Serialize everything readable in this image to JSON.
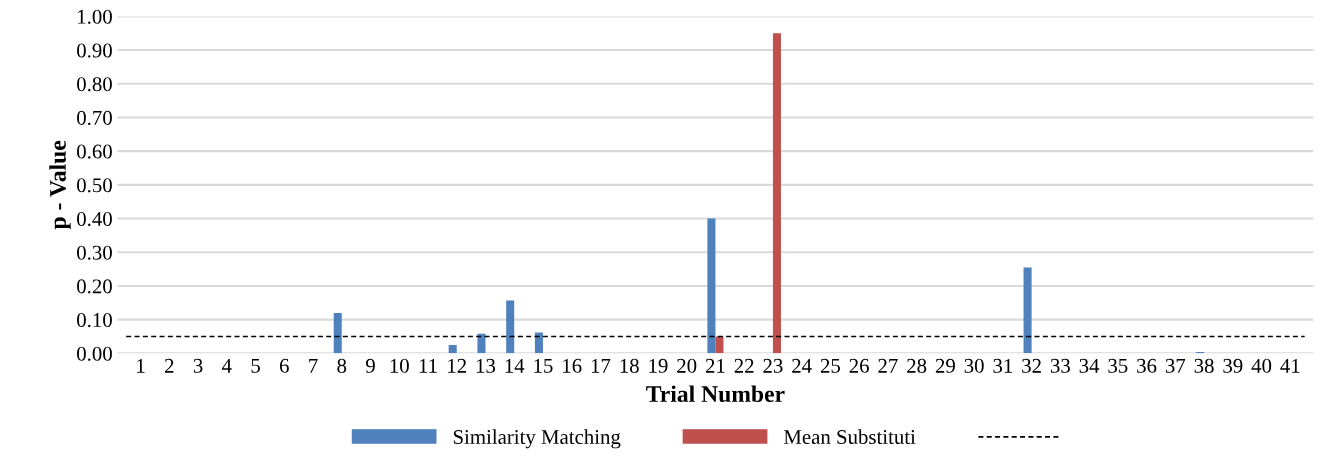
{
  "chart_data": {
    "type": "bar",
    "xlabel": "Trial Number",
    "ylabel": "p - Value",
    "categories": [
      "1",
      "2",
      "3",
      "4",
      "5",
      "6",
      "7",
      "8",
      "9",
      "10",
      "11",
      "12",
      "13",
      "14",
      "15",
      "16",
      "17",
      "18",
      "19",
      "20",
      "21",
      "22",
      "23",
      "24",
      "25",
      "26",
      "27",
      "28",
      "29",
      "30",
      "31",
      "32",
      "33",
      "34",
      "35",
      "36",
      "37",
      "38",
      "39",
      "40",
      "41"
    ],
    "series": [
      {
        "name": "Similarity Matching",
        "color": "#4f81bd",
        "values": [
          0,
          0,
          0,
          0,
          0,
          0,
          0,
          0.12,
          0,
          0,
          0,
          0.025,
          0.058,
          0.157,
          0.062,
          0,
          0,
          0,
          0,
          0,
          0.4,
          0,
          0,
          0,
          0,
          0,
          0,
          0,
          0,
          0,
          0,
          0.255,
          0,
          0,
          0,
          0,
          0,
          0.004,
          0,
          0,
          0
        ]
      },
      {
        "name": "Mean Substituti",
        "color": "#c0504d",
        "values": [
          0,
          0,
          0,
          0,
          0,
          0,
          0,
          0,
          0,
          0,
          0,
          0,
          0,
          0,
          0,
          0,
          0,
          0,
          0,
          0,
          0.05,
          0,
          0.95,
          0,
          0,
          0,
          0,
          0,
          0,
          0,
          0,
          0,
          0,
          0,
          0,
          0,
          0,
          0,
          0,
          0,
          0
        ]
      }
    ],
    "ref_lines": [
      {
        "axis": "y",
        "value": 0.05,
        "color": "#000000",
        "line_style": "dashed"
      }
    ],
    "ylim": [
      0,
      1.0
    ],
    "yticks": [
      {
        "value": 0,
        "label": "0.00"
      },
      {
        "value": 0.1,
        "label": "0.10"
      },
      {
        "value": 0.2,
        "label": "0.20"
      },
      {
        "value": 0.3,
        "label": "0.30"
      },
      {
        "value": 0.4,
        "label": "0.40"
      },
      {
        "value": 0.5,
        "label": "0.50"
      },
      {
        "value": 0.6,
        "label": "0.60"
      },
      {
        "value": 0.7,
        "label": "0.70"
      },
      {
        "value": 0.8,
        "label": "0.80"
      },
      {
        "value": 0.9,
        "label": "0.90"
      },
      {
        "value": 1.0,
        "label": "1.00"
      }
    ],
    "grid": "y",
    "legend": "bottom"
  }
}
